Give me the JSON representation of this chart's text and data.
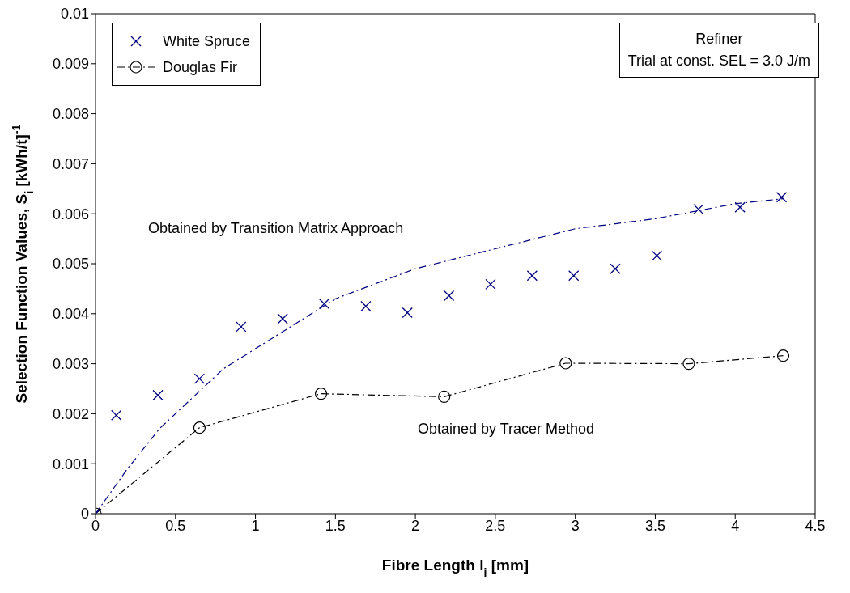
{
  "chart_data": {
    "type": "scatter",
    "xlabel": "Fibre Length l$_{i}$ [mm]",
    "ylabel": "Selection Function Values, S$_{i}$ [kWh/t]$^{-1}$",
    "xlim": [
      0,
      4.5
    ],
    "xticks": [
      0,
      0.5,
      1,
      1.5,
      2,
      2.5,
      3,
      3.5,
      4,
      4.5
    ],
    "ylim": [
      0,
      0.01
    ],
    "yticks": [
      0,
      0.001,
      0.002,
      0.003,
      0.004,
      0.005,
      0.006,
      0.007,
      0.008,
      0.009,
      0.01
    ],
    "grid": false,
    "legend": "top left",
    "series": [
      {
        "name": "White Spruce",
        "marker": "cross",
        "color": "#000080",
        "x": [
          0,
          0.13,
          0.39,
          0.65,
          0.91,
          1.17,
          1.43,
          1.69,
          1.95,
          2.21,
          2.47,
          2.73,
          2.99,
          3.25,
          3.51,
          3.77,
          4.03,
          4.29
        ],
        "values": [
          0,
          0.00197,
          0.00237,
          0.0027,
          0.00374,
          0.0039,
          0.0042,
          0.00415,
          0.00402,
          0.00436,
          0.00459,
          0.00476,
          0.00476,
          0.0049,
          0.00516,
          0.00609,
          0.00613,
          0.00633
        ]
      },
      {
        "name": "Douglas Fir",
        "type": "line",
        "marker": "circle",
        "line_style": "dashed",
        "color": "#000000",
        "x": [
          0,
          0.65,
          1.41,
          2.18,
          2.94,
          3.71,
          4.3
        ],
        "values": [
          0,
          0.00172,
          0.0024,
          0.00234,
          0.00301,
          0.003,
          0.00316
        ]
      },
      {
        "type": "line",
        "marker": "none",
        "line_style": "dashed",
        "color": "#000080",
        "x": [
          0,
          0.2,
          0.4,
          0.6,
          0.8,
          1.0,
          1.25,
          1.5,
          1.75,
          2.0,
          2.5,
          3.0,
          3.5,
          4.0,
          4.3
        ],
        "values": [
          0,
          0.0009,
          0.0017,
          0.0023,
          0.0029,
          0.0033,
          0.0038,
          0.0043,
          0.0046,
          0.0049,
          0.0053,
          0.0057,
          0.0059,
          0.0062,
          0.0063
        ]
      }
    ],
    "annotations": [
      "Obtained by Transition Matrix Approach",
      "Obtained by Tracer Method",
      "Refiner",
      "Trial at const. SEL = 3.0 J/m"
    ]
  }
}
